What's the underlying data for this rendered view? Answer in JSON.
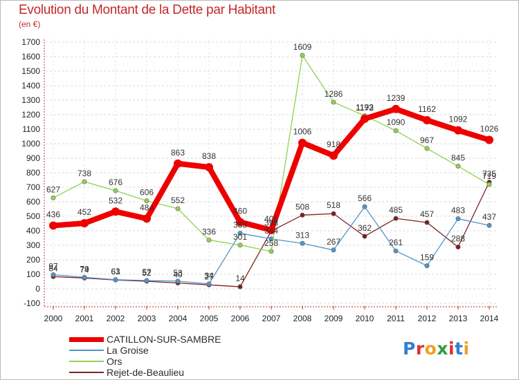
{
  "header": {
    "title": "Evolution du Montant de la Dette par Habitant",
    "subtitle": "(en €)"
  },
  "logo": {
    "letters": [
      "P",
      "r",
      "o",
      "x",
      "i",
      "t",
      "i"
    ],
    "colors": [
      "#2f7fd4",
      "#e03030",
      "#f0a020",
      "#2f9d3f",
      "#e03030",
      "#2f7fd4",
      "#f0a020"
    ]
  },
  "chart_data": {
    "type": "line",
    "title": "Evolution du Montant de la Dette par Habitant",
    "ylabel": "(en €)",
    "xlabel": "",
    "x": [
      "2000",
      "2001",
      "2002",
      "2003",
      "2004",
      "2005",
      "2006",
      "2007",
      "2008",
      "2009",
      "2010",
      "2011",
      "2012",
      "2013",
      "2014"
    ],
    "ylim": [
      -100,
      1700
    ],
    "yticks": [
      -100,
      0,
      100,
      200,
      300,
      400,
      500,
      600,
      700,
      800,
      900,
      1000,
      1100,
      1200,
      1300,
      1400,
      1500,
      1600,
      1700
    ],
    "grid": true,
    "legend_position": "bottom-left",
    "series": [
      {
        "name": "Rejet-de-Beaulieu",
        "color": "#7b2020",
        "values": [
          84,
          74,
          61,
          52,
          40,
          27,
          14,
          398,
          508,
          518,
          362,
          485,
          457,
          288,
          735
        ],
        "labels": [
          "84",
          "74",
          "61",
          "52",
          "40",
          "27",
          "14",
          "398",
          "508",
          "518",
          "362",
          "485",
          "457",
          "288",
          "735"
        ]
      },
      {
        "name": "La Groise",
        "color": "#4f95c9",
        "values": [
          97,
          79,
          63,
          57,
          53,
          34,
          383,
          344,
          313,
          267,
          566,
          261,
          159,
          483,
          437
        ],
        "labels": [
          "97",
          "79",
          "63",
          "57",
          "53",
          "34",
          "383",
          "344",
          "313",
          "267",
          "566",
          "261",
          "159",
          "483",
          "437"
        ]
      },
      {
        "name": "Ors",
        "color": "#8fd14f",
        "values": [
          627,
          738,
          676,
          606,
          552,
          336,
          301,
          258,
          1609,
          1286,
          1193,
          1090,
          967,
          845,
          719
        ],
        "labels": [
          "627",
          "738",
          "676",
          "606",
          "552",
          "336",
          "301",
          "258",
          "1609",
          "1286",
          "1193",
          "1090",
          "967",
          "845",
          "719"
        ]
      },
      {
        "name": "CATILLON-SUR-SAMBRE",
        "color": "#ee0000",
        "values": [
          436,
          452,
          532,
          484,
          863,
          838,
          460,
          405,
          1006,
          918,
          1172,
          1239,
          1162,
          1092,
          1026
        ],
        "labels": [
          "436",
          "452",
          "532",
          "484",
          "863",
          "838",
          "460",
          "405",
          "1006",
          "918",
          "1172",
          "1239",
          "1162",
          "1092",
          "1026"
        ]
      }
    ]
  },
  "legend": [
    {
      "label": "CATILLON-SUR-SAMBRE",
      "color": "#ee0000",
      "thick": true
    },
    {
      "label": "La Groise",
      "color": "#4f95c9",
      "thick": false
    },
    {
      "label": "Ors",
      "color": "#8fd14f",
      "thick": false
    },
    {
      "label": "Rejet-de-Beaulieu",
      "color": "#7b2020",
      "thick": false
    }
  ]
}
